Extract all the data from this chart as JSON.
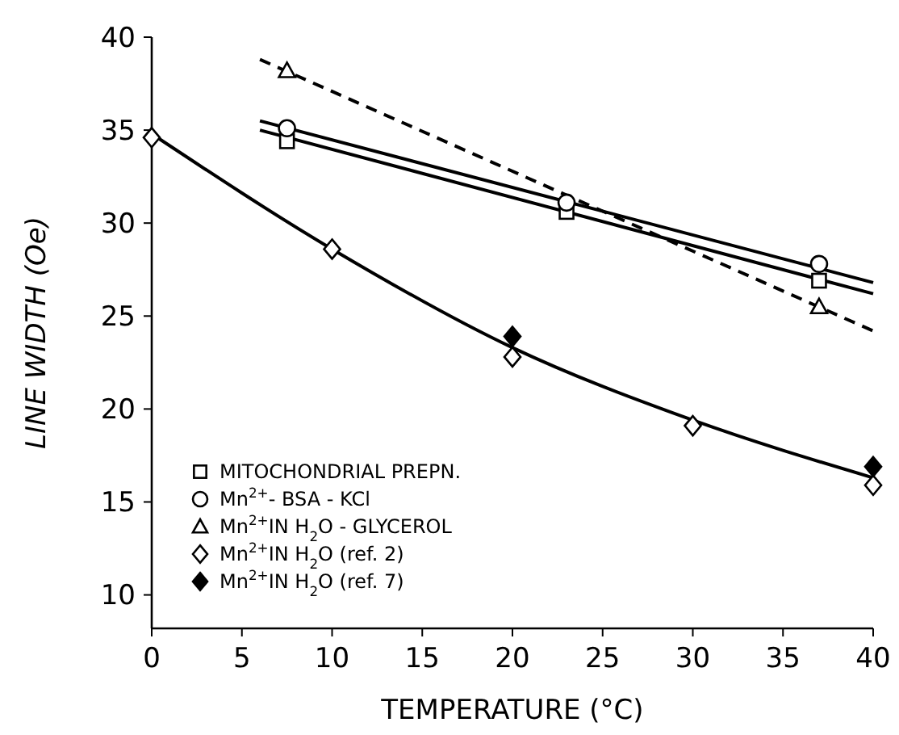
{
  "chart_data": {
    "type": "scatter",
    "xlabel": "TEMPERATURE (°C)",
    "ylabel": "LINE WIDTH (Oe)",
    "xlim": [
      0,
      40
    ],
    "ylim": [
      8.2,
      40
    ],
    "xticks": [
      0,
      5,
      10,
      15,
      20,
      25,
      30,
      35,
      40
    ],
    "yticks": [
      10,
      15,
      20,
      25,
      30,
      35,
      40
    ],
    "legend": "bottom left",
    "series": [
      {
        "type": "line",
        "color": "#000000",
        "line_style": "solid",
        "x": [
          6,
          40
        ],
        "values": [
          35.0,
          26.2
        ]
      },
      {
        "type": "line",
        "color": "#000000",
        "line_style": "solid",
        "x": [
          6,
          40
        ],
        "values": [
          35.5,
          26.8
        ]
      },
      {
        "type": "line",
        "color": "#000000",
        "line_style": "dashed",
        "x": [
          6,
          40
        ],
        "values": [
          38.8,
          24.2
        ]
      },
      {
        "type": "line",
        "color": "#000000",
        "line_style": "solid",
        "x": [
          0,
          10,
          20,
          30,
          40
        ],
        "values": [
          34.8,
          28.6,
          23.3,
          19.4,
          16.3
        ]
      },
      {
        "type": "scatter",
        "name": "MITOCHONDRIAL PREPN.",
        "marker": "square",
        "color": "#ffffff",
        "x": [
          7.5,
          23,
          37
        ],
        "values": [
          34.4,
          30.6,
          26.9
        ]
      },
      {
        "type": "scatter",
        "name": "Mn$^{2+}$- BSA - KCl",
        "marker": "circle",
        "color": "#ffffff",
        "x": [
          7.5,
          23,
          37
        ],
        "values": [
          35.1,
          31.1,
          27.8
        ]
      },
      {
        "type": "scatter",
        "name": "Mn$^{2+}$IN H$_{2}$O - GLYCEROL",
        "marker": "triangle",
        "color": "#ffffff",
        "x": [
          7.5,
          37
        ],
        "values": [
          38.2,
          25.5
        ]
      },
      {
        "type": "scatter",
        "name": "Mn$^{2+}$IN H$_{2}$O  (ref. 2)",
        "marker": "diamond",
        "color": "#ffffff",
        "x": [
          0,
          10,
          20,
          30,
          40
        ],
        "values": [
          34.6,
          28.6,
          22.8,
          19.1,
          15.9
        ]
      },
      {
        "type": "scatter",
        "name": "Mn$^{2+}$IN H$_{2}$O  (ref. 7)",
        "marker": "diamond",
        "color": "#000000",
        "x": [
          20,
          40
        ],
        "values": [
          23.9,
          16.9
        ]
      }
    ]
  }
}
